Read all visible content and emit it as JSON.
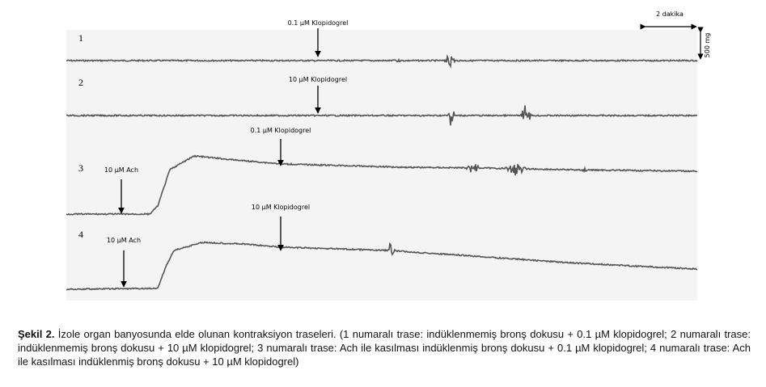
{
  "figure": {
    "scale": {
      "time": "2 dakika",
      "force": "500 mg"
    },
    "traces": [
      {
        "number": "1",
        "annotations": [
          "0.1 µM Klopidogrel"
        ]
      },
      {
        "number": "2",
        "annotations": [
          "10 µM Klopidogrel"
        ]
      },
      {
        "number": "3",
        "annotations": [
          "10 µM Ach",
          "0.1 µM Klopidogrel"
        ]
      },
      {
        "number": "4",
        "annotations": [
          "10 µM Ach",
          "10 µM Klopidogrel"
        ]
      }
    ]
  },
  "caption": {
    "label": "Şekil 2.",
    "text": "İzole organ banyosunda elde olunan kontraksiyon traseleri. (1 numaralı trase: indüklenmemiş bronş dokusu + 0.1 µM klopidogrel; 2 numaralı trase: indüklenmemiş bronş dokusu + 10 µM klopidogrel; 3 numaralı trase: Ach ile kasılması indüklenmiş bronş dokusu + 0.1 µM klopidogrel; 4 numaralı trase: Ach ile kasılması indüklenmiş bronş dokusu + 10 µM klopidogrel)"
  }
}
